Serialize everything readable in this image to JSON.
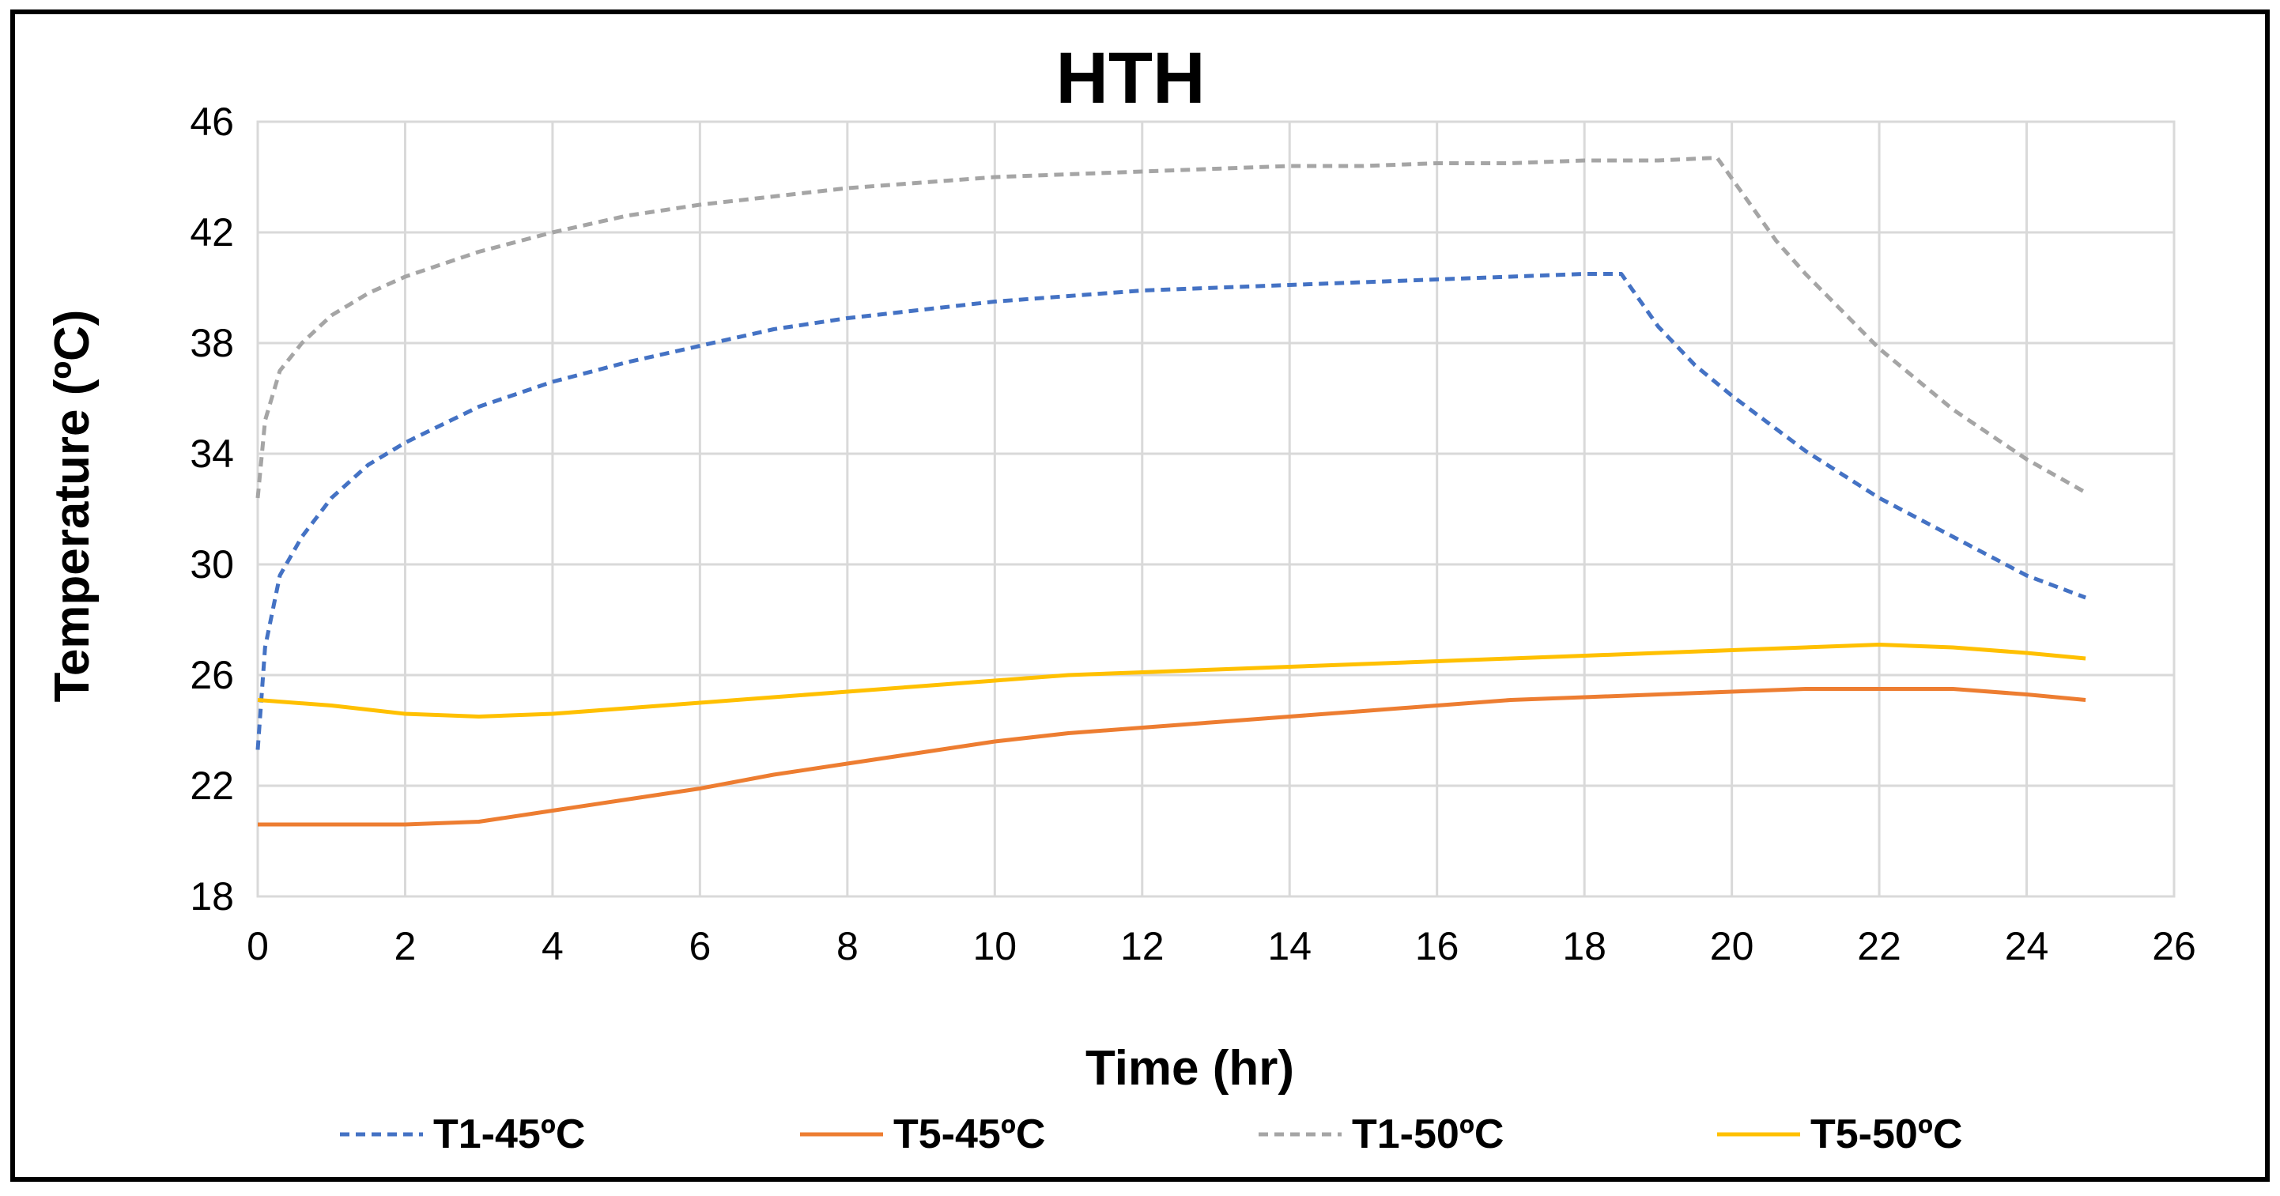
{
  "chart_data": {
    "type": "line",
    "title": "HTH",
    "xlabel": "Time (hr)",
    "ylabel": "Temperature (ºC)",
    "xlim": [
      0,
      26
    ],
    "ylim": [
      18,
      46
    ],
    "xticks": [
      0,
      2,
      4,
      6,
      8,
      10,
      12,
      14,
      16,
      18,
      20,
      22,
      24,
      26
    ],
    "yticks": [
      18,
      22,
      26,
      30,
      34,
      38,
      42,
      46
    ],
    "grid": true,
    "legend_position": "bottom",
    "series": [
      {
        "name": "T1-45ºC",
        "color": "#4472c4",
        "dashed": true,
        "points": [
          [
            0,
            23.3
          ],
          [
            0.1,
            27.0
          ],
          [
            0.3,
            29.6
          ],
          [
            0.6,
            31.0
          ],
          [
            1,
            32.4
          ],
          [
            1.5,
            33.6
          ],
          [
            2,
            34.4
          ],
          [
            3,
            35.7
          ],
          [
            4,
            36.6
          ],
          [
            5,
            37.3
          ],
          [
            6,
            37.9
          ],
          [
            7,
            38.5
          ],
          [
            8,
            38.9
          ],
          [
            9,
            39.2
          ],
          [
            10,
            39.5
          ],
          [
            11,
            39.7
          ],
          [
            12,
            39.9
          ],
          [
            13,
            40.0
          ],
          [
            14,
            40.1
          ],
          [
            15,
            40.2
          ],
          [
            16,
            40.3
          ],
          [
            17,
            40.4
          ],
          [
            18,
            40.5
          ],
          [
            18.5,
            40.5
          ],
          [
            19,
            38.6
          ],
          [
            19.5,
            37.2
          ],
          [
            20,
            36.1
          ],
          [
            21,
            34.1
          ],
          [
            22,
            32.4
          ],
          [
            23,
            31.0
          ],
          [
            24,
            29.6
          ],
          [
            24.8,
            28.8
          ]
        ]
      },
      {
        "name": "T5-45ºC",
        "color": "#ed7d31",
        "dashed": false,
        "points": [
          [
            0,
            20.6
          ],
          [
            1,
            20.6
          ],
          [
            2,
            20.6
          ],
          [
            3,
            20.7
          ],
          [
            4,
            21.1
          ],
          [
            5,
            21.5
          ],
          [
            6,
            21.9
          ],
          [
            7,
            22.4
          ],
          [
            8,
            22.8
          ],
          [
            9,
            23.2
          ],
          [
            10,
            23.6
          ],
          [
            11,
            23.9
          ],
          [
            12,
            24.1
          ],
          [
            13,
            24.3
          ],
          [
            14,
            24.5
          ],
          [
            15,
            24.7
          ],
          [
            16,
            24.9
          ],
          [
            17,
            25.1
          ],
          [
            18,
            25.2
          ],
          [
            19,
            25.3
          ],
          [
            20,
            25.4
          ],
          [
            21,
            25.5
          ],
          [
            22,
            25.5
          ],
          [
            23,
            25.5
          ],
          [
            24,
            25.3
          ],
          [
            24.8,
            25.1
          ]
        ]
      },
      {
        "name": "T1-50ºC",
        "color": "#a5a5a5",
        "dashed": true,
        "points": [
          [
            0,
            32.4
          ],
          [
            0.1,
            35.2
          ],
          [
            0.3,
            37.0
          ],
          [
            0.6,
            38.0
          ],
          [
            1,
            39.0
          ],
          [
            1.5,
            39.8
          ],
          [
            2,
            40.4
          ],
          [
            3,
            41.3
          ],
          [
            4,
            42.0
          ],
          [
            5,
            42.6
          ],
          [
            6,
            43.0
          ],
          [
            7,
            43.3
          ],
          [
            8,
            43.6
          ],
          [
            9,
            43.8
          ],
          [
            10,
            44.0
          ],
          [
            11,
            44.1
          ],
          [
            12,
            44.2
          ],
          [
            13,
            44.3
          ],
          [
            14,
            44.4
          ],
          [
            15,
            44.4
          ],
          [
            16,
            44.5
          ],
          [
            17,
            44.5
          ],
          [
            18,
            44.6
          ],
          [
            19,
            44.6
          ],
          [
            19.8,
            44.7
          ],
          [
            20.2,
            43.2
          ],
          [
            20.6,
            41.7
          ],
          [
            21,
            40.5
          ],
          [
            22,
            37.8
          ],
          [
            23,
            35.6
          ],
          [
            24,
            33.8
          ],
          [
            24.8,
            32.6
          ]
        ]
      },
      {
        "name": "T5-50ºC",
        "color": "#ffc000",
        "dashed": false,
        "points": [
          [
            0,
            25.1
          ],
          [
            1,
            24.9
          ],
          [
            2,
            24.6
          ],
          [
            3,
            24.5
          ],
          [
            4,
            24.6
          ],
          [
            5,
            24.8
          ],
          [
            6,
            25.0
          ],
          [
            7,
            25.2
          ],
          [
            8,
            25.4
          ],
          [
            9,
            25.6
          ],
          [
            10,
            25.8
          ],
          [
            11,
            26.0
          ],
          [
            12,
            26.1
          ],
          [
            13,
            26.2
          ],
          [
            14,
            26.3
          ],
          [
            15,
            26.4
          ],
          [
            16,
            26.5
          ],
          [
            17,
            26.6
          ],
          [
            18,
            26.7
          ],
          [
            19,
            26.8
          ],
          [
            20,
            26.9
          ],
          [
            21,
            27.0
          ],
          [
            22,
            27.1
          ],
          [
            23,
            27.0
          ],
          [
            24,
            26.8
          ],
          [
            24.8,
            26.6
          ]
        ]
      }
    ]
  }
}
